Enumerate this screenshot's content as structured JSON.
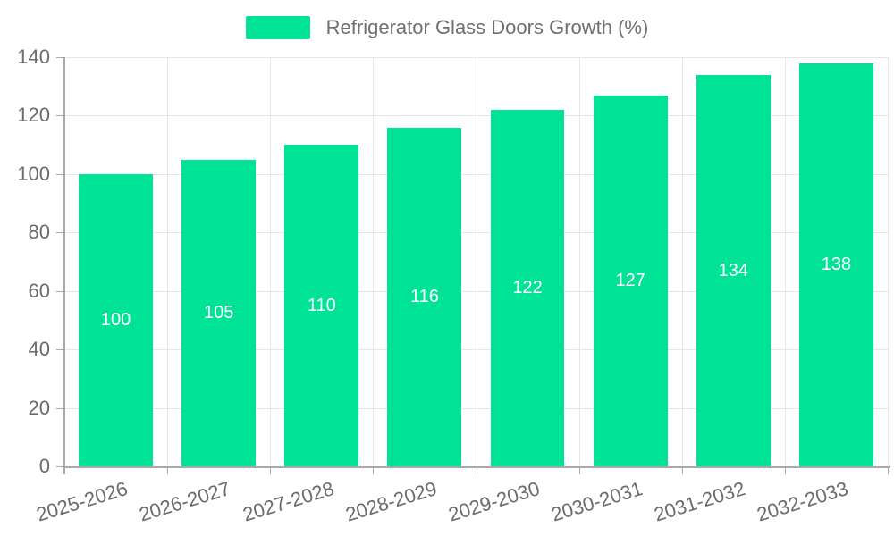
{
  "chart_data": {
    "type": "bar",
    "title": "Refrigerator Glass Doors Growth (%)",
    "legend": {
      "label": "Refrigerator Glass Doors Growth (%)",
      "position": "top"
    },
    "categories": [
      "2025-2026",
      "2026-2027",
      "2027-2028",
      "2028-2029",
      "2029-2030",
      "2030-2031",
      "2031-2032",
      "2032-2033"
    ],
    "values": [
      100,
      105,
      110,
      116,
      122,
      127,
      134,
      138
    ],
    "xlabel": "",
    "ylabel": "",
    "ylim": [
      0,
      140
    ],
    "y_ticks": [
      0,
      20,
      40,
      60,
      80,
      100,
      120,
      140
    ],
    "grid": true,
    "colors": {
      "bar": "#00E396",
      "grid": "#e6e6e6",
      "axis": "#a9a9a9",
      "tick_text": "#6b6b6b",
      "value_label": "#ffffff"
    }
  }
}
